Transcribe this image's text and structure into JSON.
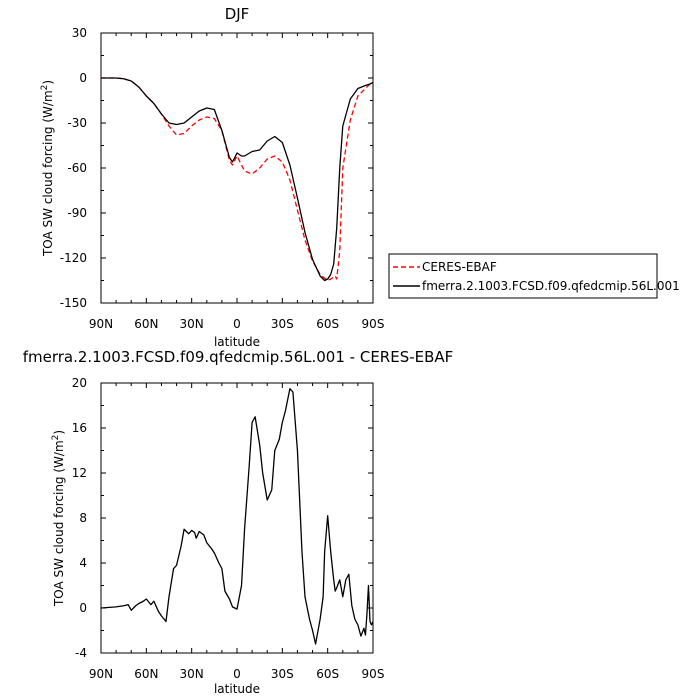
{
  "chart_data": [
    {
      "type": "line",
      "title": "DJF",
      "xlabel": "latitude",
      "ylabel_main": "TOA SW cloud forcing (W/m",
      "ylabel_sup": "2",
      "ylabel_tail": ")",
      "xlim": [
        90,
        -90
      ],
      "ylim": [
        -150,
        30
      ],
      "xticks": [
        {
          "value": 90,
          "label": "90N"
        },
        {
          "value": 60,
          "label": "60N"
        },
        {
          "value": 30,
          "label": "30N"
        },
        {
          "value": 0,
          "label": "0"
        },
        {
          "value": -30,
          "label": "30S"
        },
        {
          "value": -60,
          "label": "60S"
        },
        {
          "value": -90,
          "label": "90S"
        }
      ],
      "yticks": [
        30,
        0,
        -30,
        -60,
        -90,
        -120,
        -150
      ],
      "legend_position": "right",
      "series": [
        {
          "name": "CERES-EBAF",
          "color": "#ff0000",
          "dash": "dashed",
          "x": [
            90,
            80,
            75,
            70,
            65,
            60,
            55,
            50,
            45,
            40,
            35,
            30,
            25,
            20,
            15,
            10,
            5,
            3,
            0,
            -3,
            -5,
            -10,
            -15,
            -20,
            -25,
            -30,
            -35,
            -40,
            -45,
            -50,
            -55,
            -60,
            -62,
            -65,
            -66,
            -68,
            -70,
            -75,
            -80,
            -85,
            -88,
            -90
          ],
          "y": [
            0,
            0,
            -0.5,
            -2,
            -6,
            -12,
            -17,
            -24,
            -32,
            -38,
            -37,
            -32,
            -28,
            -26,
            -27,
            -35,
            -55,
            -58,
            -52,
            -58,
            -62,
            -64,
            -60,
            -54,
            -52,
            -56,
            -68,
            -88,
            -108,
            -122,
            -131,
            -135,
            -134,
            -132,
            -134,
            -115,
            -60,
            -28,
            -12,
            -7,
            -4,
            -4
          ]
        },
        {
          "name": "fmerra.2.1003.FCSD.f09.qfedcmip.56L.001",
          "color": "#000000",
          "dash": "solid",
          "x": [
            90,
            80,
            75,
            70,
            65,
            60,
            55,
            50,
            45,
            40,
            35,
            30,
            25,
            20,
            15,
            10,
            5,
            3,
            0,
            -3,
            -5,
            -10,
            -15,
            -20,
            -25,
            -30,
            -35,
            -40,
            -45,
            -50,
            -55,
            -58,
            -60,
            -62,
            -64,
            -66,
            -68,
            -70,
            -75,
            -80,
            -85,
            -88,
            -90
          ],
          "y": [
            0,
            0,
            -0.5,
            -2,
            -6,
            -12,
            -17,
            -24,
            -30,
            -31,
            -30,
            -26,
            -22,
            -20,
            -21,
            -35,
            -53,
            -56,
            -50,
            -52,
            -52,
            -49,
            -48,
            -42,
            -39,
            -43,
            -58,
            -80,
            -103,
            -121,
            -132,
            -135,
            -134,
            -131,
            -124,
            -100,
            -60,
            -32,
            -14,
            -7,
            -5,
            -4,
            -3
          ]
        }
      ]
    },
    {
      "type": "line",
      "title": "fmerra.2.1003.FCSD.f09.qfedcmip.56L.001 - CERES-EBAF",
      "xlabel": "latitude",
      "ylabel_main": "TOA SW cloud forcing (W/m",
      "ylabel_sup": "2",
      "ylabel_tail": ")",
      "xlim": [
        90,
        -90
      ],
      "ylim": [
        -4,
        20
      ],
      "xticks": [
        {
          "value": 90,
          "label": "90N"
        },
        {
          "value": 60,
          "label": "60N"
        },
        {
          "value": 30,
          "label": "30N"
        },
        {
          "value": 0,
          "label": "0"
        },
        {
          "value": -30,
          "label": "30S"
        },
        {
          "value": -60,
          "label": "60S"
        },
        {
          "value": -90,
          "label": "90S"
        }
      ],
      "yticks": [
        20,
        16,
        12,
        8,
        4,
        0,
        -4
      ],
      "series": [
        {
          "color": "#000000",
          "dash": "solid",
          "x": [
            90,
            80,
            75,
            72,
            70,
            67,
            65,
            62,
            60,
            57,
            55,
            52,
            50,
            47,
            45,
            42,
            40,
            37,
            35,
            32,
            30,
            28,
            27,
            25,
            22,
            20,
            17,
            15,
            12,
            10,
            8,
            5,
            3,
            0,
            -3,
            -5,
            -8,
            -10,
            -12,
            -15,
            -17,
            -20,
            -23,
            -25,
            -28,
            -30,
            -32,
            -35,
            -37,
            -40,
            -43,
            -45,
            -48,
            -50,
            -52,
            -55,
            -57,
            -58,
            -60,
            -62,
            -64,
            -65,
            -66,
            -68,
            -70,
            -72,
            -74,
            -76,
            -78,
            -80,
            -82,
            -84,
            -85,
            -86,
            -87,
            -88,
            -89,
            -90
          ],
          "y": [
            0,
            0.1,
            0.2,
            0.3,
            -0.2,
            0.2,
            0.4,
            0.6,
            0.8,
            0.3,
            0.6,
            -0.3,
            -0.7,
            -1.2,
            1.0,
            3.5,
            3.8,
            5.5,
            7.0,
            6.6,
            6.9,
            6.7,
            6.2,
            6.8,
            6.5,
            5.8,
            5.3,
            4.9,
            4.0,
            3.5,
            1.5,
            0.8,
            0.1,
            -0.1,
            2.0,
            7.0,
            12.5,
            16.5,
            17.0,
            14.5,
            12.0,
            9.6,
            10.5,
            14.0,
            15.0,
            16.5,
            17.5,
            19.5,
            19.2,
            14.0,
            5.0,
            1.0,
            -1.0,
            -2.0,
            -3.2,
            -1.0,
            1.0,
            5.0,
            8.2,
            5.0,
            2.5,
            1.5,
            1.8,
            2.5,
            1.0,
            2.5,
            3.0,
            0.2,
            -1.0,
            -1.5,
            -2.5,
            -1.8,
            -2.4,
            -0.5,
            2.0,
            -1.2,
            -1.5,
            -1.2
          ]
        }
      ]
    }
  ],
  "legend": {
    "items": [
      {
        "label": "CERES-EBAF",
        "color": "#ff0000",
        "dash": "dashed"
      },
      {
        "label": "fmerra.2.1003.FCSD.f09.qfedcmip.56L.001",
        "color": "#000000",
        "dash": "solid"
      }
    ]
  }
}
